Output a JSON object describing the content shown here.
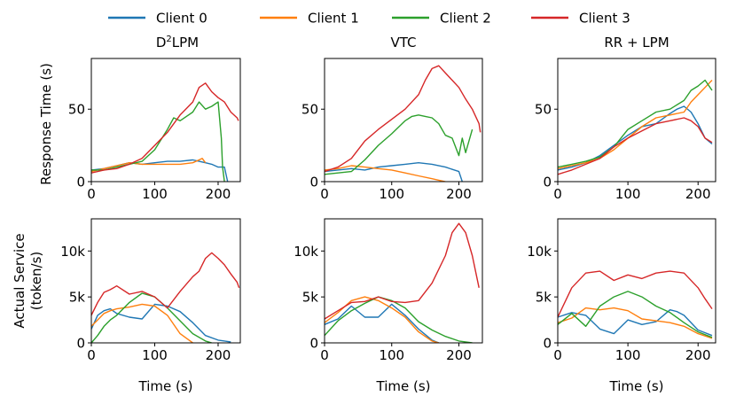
{
  "legend": [
    {
      "label": "Client 0",
      "color": "#1f77b4"
    },
    {
      "label": "Client 1",
      "color": "#ff7f0e"
    },
    {
      "label": "Client 2",
      "color": "#2ca02c"
    },
    {
      "label": "Client 3",
      "color": "#d62728"
    }
  ],
  "column_titles": [
    {
      "base": "D",
      "sup": "2",
      "rest": "LPM"
    },
    {
      "base": "VTC",
      "sup": "",
      "rest": ""
    },
    {
      "base": "RR + LPM",
      "sup": "",
      "rest": ""
    }
  ],
  "row_labels": {
    "top": [
      "Response Time (s)"
    ],
    "bottom": [
      "Actual Service",
      "(token/s)"
    ]
  },
  "x_axis_label": "Time (s)",
  "chart_data": [
    {
      "type": "line",
      "panel": "D2LPM-response",
      "title": "D²LPM",
      "xlabel": "",
      "ylabel": "Response Time (s)",
      "xlim": [
        0,
        235
      ],
      "ylim": [
        0,
        85
      ],
      "xticks": [
        0,
        100,
        200
      ],
      "xtick_labels": [
        "0",
        "100",
        "200"
      ],
      "yticks": [
        0,
        50
      ],
      "ytick_labels": [
        "0",
        "50"
      ],
      "series": [
        {
          "name": "Client 0",
          "x": [
            0,
            20,
            40,
            60,
            80,
            100,
            120,
            140,
            160,
            170,
            180,
            190,
            200,
            210,
            215
          ],
          "y": [
            8,
            9,
            11,
            13,
            12,
            13,
            14,
            14,
            15,
            14,
            13,
            12,
            10,
            10,
            0
          ]
        },
        {
          "name": "Client 1",
          "x": [
            0,
            20,
            40,
            60,
            80,
            100,
            120,
            140,
            160,
            170,
            175,
            180
          ],
          "y": [
            7,
            9,
            11,
            13,
            12,
            12,
            12,
            12,
            13,
            15,
            16,
            13
          ]
        },
        {
          "name": "Client 2",
          "x": [
            0,
            20,
            40,
            60,
            80,
            100,
            120,
            130,
            140,
            160,
            170,
            180,
            190,
            200,
            205,
            207,
            210
          ],
          "y": [
            8,
            8,
            10,
            12,
            14,
            22,
            36,
            44,
            42,
            48,
            55,
            50,
            52,
            55,
            30,
            10,
            0
          ]
        },
        {
          "name": "Client 3",
          "x": [
            0,
            20,
            40,
            60,
            80,
            100,
            120,
            140,
            160,
            170,
            180,
            190,
            200,
            210,
            220,
            230,
            232
          ],
          "y": [
            6,
            8,
            9,
            12,
            16,
            25,
            34,
            46,
            55,
            65,
            68,
            62,
            58,
            55,
            48,
            44,
            42
          ]
        }
      ]
    },
    {
      "type": "line",
      "panel": "VTC-response",
      "title": "VTC",
      "xlabel": "",
      "ylabel": "",
      "xlim": [
        0,
        235
      ],
      "ylim": [
        0,
        85
      ],
      "xticks": [
        0,
        100,
        200
      ],
      "xtick_labels": [
        "0",
        "100",
        "200"
      ],
      "yticks": [
        0,
        50
      ],
      "ytick_labels": [
        "0",
        "50"
      ],
      "series": [
        {
          "name": "Client 0",
          "x": [
            0,
            20,
            40,
            60,
            80,
            100,
            120,
            140,
            160,
            180,
            200,
            205
          ],
          "y": [
            7,
            8,
            9,
            8,
            10,
            11,
            12,
            13,
            12,
            10,
            7,
            0
          ]
        },
        {
          "name": "Client 1",
          "x": [
            0,
            20,
            40,
            60,
            80,
            100,
            120,
            140,
            160,
            170,
            180
          ],
          "y": [
            8,
            9,
            11,
            10,
            9,
            8,
            6,
            4,
            2,
            1,
            0
          ]
        },
        {
          "name": "Client 2",
          "x": [
            0,
            20,
            40,
            60,
            80,
            100,
            120,
            130,
            140,
            150,
            160,
            170,
            180,
            190,
            200,
            205,
            210,
            220
          ],
          "y": [
            5,
            6,
            7,
            15,
            25,
            33,
            42,
            45,
            46,
            45,
            44,
            40,
            32,
            30,
            18,
            30,
            20,
            36
          ]
        },
        {
          "name": "Client 3",
          "x": [
            0,
            20,
            40,
            60,
            80,
            100,
            120,
            140,
            150,
            160,
            170,
            180,
            190,
            200,
            210,
            220,
            230,
            232
          ],
          "y": [
            7,
            10,
            16,
            28,
            36,
            43,
            50,
            60,
            70,
            78,
            80,
            75,
            70,
            65,
            57,
            50,
            40,
            34
          ]
        }
      ]
    },
    {
      "type": "line",
      "panel": "RRLPM-response",
      "title": "RR + LPM",
      "xlabel": "",
      "ylabel": "",
      "xlim": [
        0,
        225
      ],
      "ylim": [
        0,
        85
      ],
      "xticks": [
        0,
        100,
        200
      ],
      "xtick_labels": [
        "0",
        "100",
        "200"
      ],
      "yticks": [
        0,
        50
      ],
      "ytick_labels": [
        "0",
        "50"
      ],
      "series": [
        {
          "name": "Client 0",
          "x": [
            0,
            20,
            40,
            60,
            80,
            100,
            120,
            140,
            160,
            170,
            180,
            190,
            200,
            210,
            220
          ],
          "y": [
            8,
            10,
            13,
            18,
            25,
            32,
            38,
            40,
            47,
            50,
            52,
            48,
            40,
            30,
            26
          ]
        },
        {
          "name": "Client 1",
          "x": [
            0,
            20,
            40,
            60,
            80,
            100,
            120,
            140,
            160,
            180,
            190,
            200,
            210,
            220
          ],
          "y": [
            9,
            11,
            13,
            16,
            22,
            30,
            38,
            44,
            46,
            48,
            55,
            60,
            65,
            70
          ]
        },
        {
          "name": "Client 2",
          "x": [
            0,
            20,
            40,
            60,
            80,
            100,
            120,
            140,
            160,
            180,
            190,
            200,
            210,
            220
          ],
          "y": [
            10,
            12,
            14,
            17,
            24,
            36,
            42,
            48,
            50,
            56,
            63,
            66,
            70,
            63
          ]
        },
        {
          "name": "Client 3",
          "x": [
            0,
            20,
            40,
            60,
            80,
            100,
            120,
            140,
            160,
            180,
            190,
            200,
            210,
            220
          ],
          "y": [
            5,
            8,
            12,
            16,
            24,
            30,
            35,
            40,
            42,
            44,
            42,
            38,
            30,
            27
          ]
        }
      ]
    },
    {
      "type": "line",
      "panel": "D2LPM-service",
      "title": "",
      "xlabel": "Time (s)",
      "ylabel": "Actual Service (token/s)",
      "xlim": [
        0,
        235
      ],
      "ylim": [
        0,
        13500
      ],
      "xticks": [
        0,
        100,
        200
      ],
      "xtick_labels": [
        "0",
        "100",
        "200"
      ],
      "yticks": [
        0,
        5000,
        10000
      ],
      "ytick_labels": [
        "0",
        "5k",
        "10k"
      ],
      "series": [
        {
          "name": "Client 0",
          "x": [
            0,
            10,
            20,
            30,
            40,
            60,
            80,
            100,
            120,
            140,
            160,
            180,
            200,
            220
          ],
          "y": [
            1500,
            3000,
            3500,
            3700,
            3200,
            2800,
            2600,
            4200,
            4000,
            3400,
            2200,
            800,
            300,
            100
          ]
        },
        {
          "name": "Client 1",
          "x": [
            0,
            10,
            20,
            30,
            40,
            60,
            80,
            100,
            120,
            140,
            160
          ],
          "y": [
            1800,
            2500,
            3200,
            3500,
            3700,
            3900,
            4200,
            4000,
            3000,
            1000,
            0
          ]
        },
        {
          "name": "Client 2",
          "x": [
            0,
            10,
            20,
            30,
            40,
            60,
            80,
            100,
            120,
            140,
            160,
            180,
            190
          ],
          "y": [
            0,
            800,
            1800,
            2500,
            3000,
            4400,
            5400,
            5000,
            3800,
            2400,
            1000,
            200,
            0
          ]
        },
        {
          "name": "Client 3",
          "x": [
            0,
            10,
            20,
            30,
            40,
            60,
            80,
            100,
            120,
            140,
            160,
            170,
            180,
            190,
            200,
            210,
            220,
            230,
            233
          ],
          "y": [
            3000,
            4400,
            5500,
            5800,
            6200,
            5300,
            5600,
            5000,
            3800,
            5600,
            7200,
            7800,
            9200,
            9800,
            9200,
            8500,
            7500,
            6600,
            6000
          ]
        }
      ]
    },
    {
      "type": "line",
      "panel": "VTC-service",
      "title": "",
      "xlabel": "Time (s)",
      "ylabel": "",
      "xlim": [
        0,
        235
      ],
      "ylim": [
        0,
        13500
      ],
      "xticks": [
        0,
        100,
        200
      ],
      "xtick_labels": [
        "0",
        "100",
        "200"
      ],
      "yticks": [
        0,
        5000,
        10000
      ],
      "ytick_labels": [
        "0",
        "5k",
        "10k"
      ],
      "series": [
        {
          "name": "Client 0",
          "x": [
            0,
            20,
            40,
            60,
            80,
            100,
            120,
            140,
            160,
            170
          ],
          "y": [
            2000,
            2600,
            4000,
            2800,
            2800,
            4200,
            3000,
            1500,
            300,
            0
          ]
        },
        {
          "name": "Client 1",
          "x": [
            0,
            20,
            40,
            60,
            80,
            100,
            120,
            140,
            160,
            170
          ],
          "y": [
            2200,
            3300,
            4600,
            5000,
            4600,
            3800,
            2800,
            1200,
            200,
            0
          ]
        },
        {
          "name": "Client 2",
          "x": [
            0,
            20,
            40,
            60,
            80,
            100,
            120,
            140,
            160,
            180,
            200,
            220
          ],
          "y": [
            800,
            2400,
            3500,
            4300,
            5000,
            4600,
            3800,
            2300,
            1400,
            700,
            200,
            0
          ]
        },
        {
          "name": "Client 3",
          "x": [
            0,
            20,
            40,
            60,
            80,
            100,
            120,
            140,
            160,
            180,
            190,
            200,
            210,
            220,
            230
          ],
          "y": [
            2600,
            3500,
            4400,
            4500,
            5000,
            4500,
            4400,
            4600,
            6500,
            9500,
            12000,
            13000,
            12000,
            9500,
            6000
          ]
        }
      ]
    },
    {
      "type": "line",
      "panel": "RRLPM-service",
      "title": "",
      "xlabel": "Time (s)",
      "ylabel": "",
      "xlim": [
        0,
        225
      ],
      "ylim": [
        0,
        13500
      ],
      "xticks": [
        0,
        100,
        200
      ],
      "xtick_labels": [
        "0",
        "100",
        "200"
      ],
      "yticks": [
        0,
        5000,
        10000
      ],
      "ytick_labels": [
        "0",
        "5k",
        "10k"
      ],
      "series": [
        {
          "name": "Client 0",
          "x": [
            0,
            20,
            40,
            60,
            80,
            100,
            120,
            140,
            160,
            170,
            180,
            200,
            220
          ],
          "y": [
            2800,
            3300,
            3000,
            1500,
            1000,
            2500,
            2000,
            2300,
            3600,
            3400,
            3000,
            1400,
            800
          ]
        },
        {
          "name": "Client 1",
          "x": [
            0,
            20,
            40,
            60,
            80,
            100,
            120,
            140,
            160,
            180,
            200,
            220
          ],
          "y": [
            2200,
            2700,
            3800,
            3600,
            3800,
            3500,
            2600,
            2400,
            2200,
            1800,
            1000,
            500
          ]
        },
        {
          "name": "Client 2",
          "x": [
            0,
            20,
            40,
            60,
            80,
            100,
            120,
            140,
            160,
            180,
            200,
            220
          ],
          "y": [
            2000,
            3200,
            1800,
            4000,
            5000,
            5600,
            5000,
            4000,
            3300,
            2200,
            1200,
            600
          ]
        },
        {
          "name": "Client 3",
          "x": [
            0,
            20,
            40,
            60,
            80,
            100,
            120,
            140,
            160,
            180,
            200,
            210,
            220
          ],
          "y": [
            2800,
            6000,
            7600,
            7800,
            6800,
            7400,
            7000,
            7600,
            7800,
            7600,
            6000,
            4800,
            3700
          ]
        }
      ]
    }
  ]
}
